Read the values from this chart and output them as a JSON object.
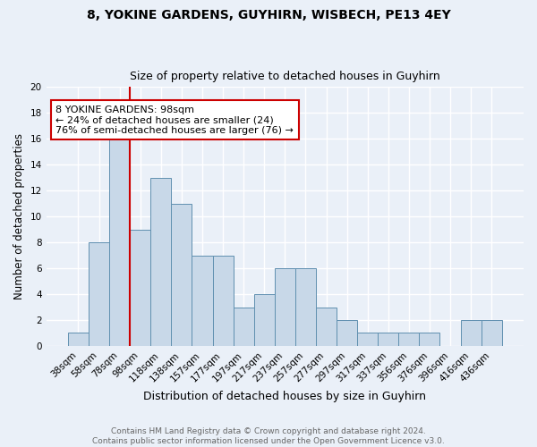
{
  "title1": "8, YOKINE GARDENS, GUYHIRN, WISBECH, PE13 4EY",
  "title2": "Size of property relative to detached houses in Guyhirn",
  "xlabel": "Distribution of detached houses by size in Guyhirn",
  "ylabel": "Number of detached properties",
  "bar_labels": [
    "38sqm",
    "58sqm",
    "78sqm",
    "98sqm",
    "118sqm",
    "138sqm",
    "157sqm",
    "177sqm",
    "197sqm",
    "217sqm",
    "237sqm",
    "257sqm",
    "277sqm",
    "297sqm",
    "317sqm",
    "337sqm",
    "356sqm",
    "376sqm",
    "396sqm",
    "416sqm",
    "436sqm"
  ],
  "bar_values": [
    1,
    8,
    16,
    9,
    13,
    11,
    7,
    7,
    3,
    4,
    6,
    6,
    3,
    2,
    1,
    1,
    1,
    1,
    0,
    2,
    2
  ],
  "bar_color": "#c8d8e8",
  "bar_edge_color": "#6090b0",
  "vline_color": "#cc0000",
  "annotation_text": "8 YOKINE GARDENS: 98sqm\n← 24% of detached houses are smaller (24)\n76% of semi-detached houses are larger (76) →",
  "annotation_box_color": "#ffffff",
  "annotation_box_edge": "#cc0000",
  "ylim": [
    0,
    20
  ],
  "yticks": [
    0,
    2,
    4,
    6,
    8,
    10,
    12,
    14,
    16,
    18,
    20
  ],
  "footer_text": "Contains HM Land Registry data © Crown copyright and database right 2024.\nContains public sector information licensed under the Open Government Licence v3.0.",
  "bg_color": "#eaf0f8",
  "grid_color": "#ffffff"
}
